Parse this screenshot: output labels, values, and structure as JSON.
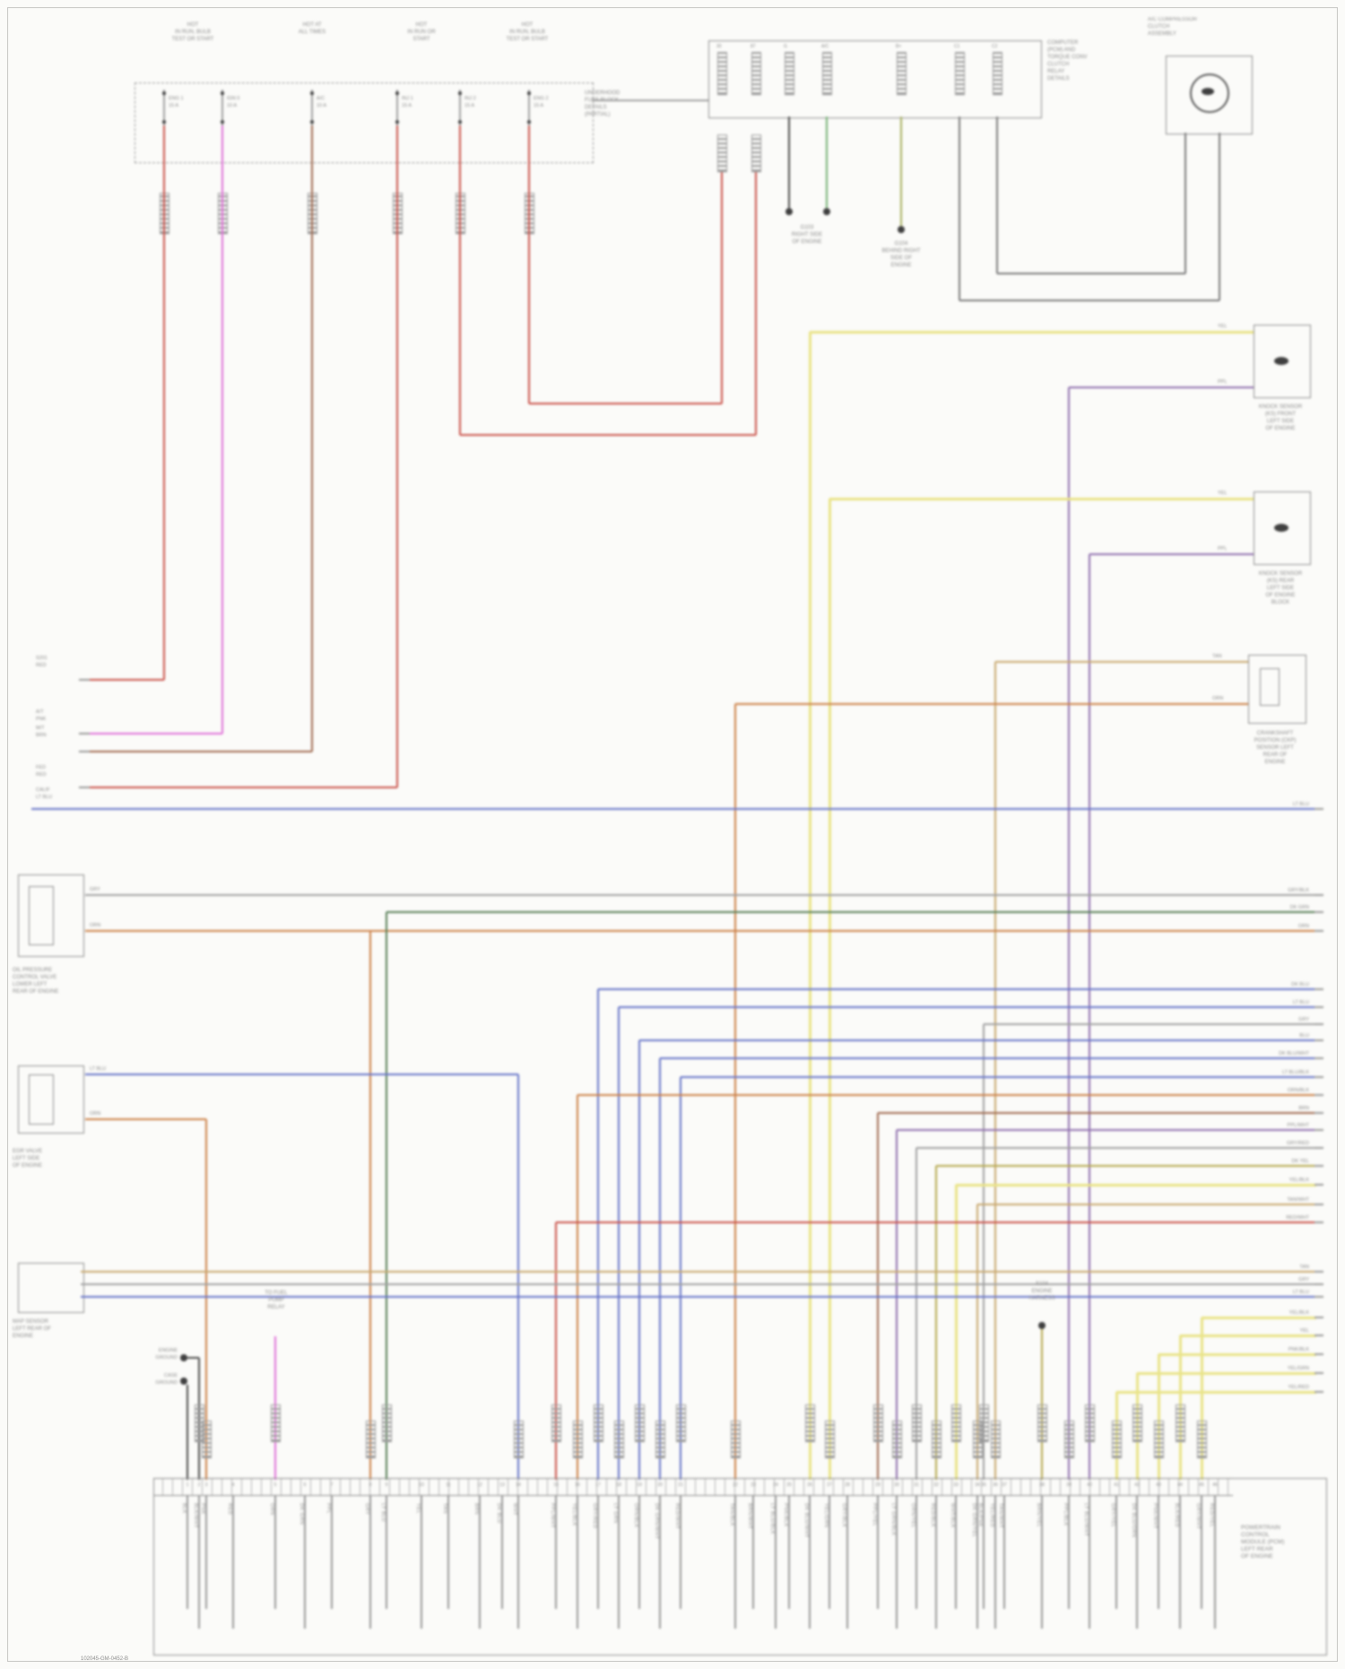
{
  "palette": {
    "red": "#c9524a",
    "pink": "#e070d8",
    "orange": "#cc8046",
    "brown": "#a06a50",
    "tan": "#c8a86e",
    "yellow": "#e9e387",
    "dkyellow": "#b5a84e",
    "green": "#74b274",
    "olive": "#a8b060",
    "dkgreen": "#557d55",
    "blue": "#6674c8",
    "purple": "#8f6fae",
    "gray": "#a0a0a0",
    "dkgray": "#7a7a7a",
    "black": "#4a4a4a"
  },
  "fuse_panel": {
    "headers": [
      [
        "HOT",
        "IN RUN, BULB",
        "TEST OR START"
      ],
      [
        "HOT AT",
        "ALL TIMES"
      ],
      [
        "HOT",
        "IN RUN OR",
        "START"
      ],
      [
        "HOT",
        "IN RUN, BULB",
        "TEST OR START"
      ]
    ],
    "detail_label": [
      "UNDERHOOD",
      "FUSE BLOCK",
      "DETAILS",
      "(PARTIAL)"
    ],
    "fuses": [
      [
        "ENG 1",
        "15 A"
      ],
      [
        "IGN 0",
        "10 A"
      ],
      [
        "A/C",
        "10 A"
      ],
      [
        "INJ 1",
        "15 A"
      ],
      [
        "INJ 2",
        "15 A"
      ],
      [
        "ENG 2",
        "15 A"
      ]
    ]
  },
  "junction": {
    "label": [
      "COMPUTER",
      "(PCM) AND",
      "TORQUE CONV",
      "CLUTCH",
      "RELAY",
      "DETAILS"
    ],
    "pins": [
      "30",
      "87",
      "G",
      "A/C",
      "B+",
      "C1",
      "C2"
    ],
    "component_label": [
      "A/C COMPRESSOR",
      "CLUTCH",
      "ASSEMBLY"
    ]
  },
  "grounds": {
    "g1": [
      "G103",
      "RIGHT SIDE",
      "OF ENGINE"
    ],
    "g2": [
      "G104",
      "BEHIND RIGHT",
      "SIDE OF",
      "ENGINE"
    ],
    "d1": [
      "ENGINE",
      "GROUND"
    ],
    "d2": [
      "CASE",
      "GROUND"
    ]
  },
  "right_components": [
    {
      "label": [
        "KNOCK SENSOR",
        "(KS) FRONT",
        "LEFT SIDE",
        "OF ENGINE"
      ]
    },
    {
      "label": [
        "KNOCK SENSOR",
        "(KS) REAR",
        "LEFT SIDE",
        "OF ENGINE",
        "BLOCK"
      ]
    },
    {
      "label": [
        "CRANKSHAFT",
        "POSITION (CKP)",
        "SENSOR LEFT",
        "REAR OF",
        "ENGINE"
      ]
    }
  ],
  "left_components": [
    {
      "label": [
        "OIL PRESSURE",
        "CONTROL VALVE",
        "LOWER LEFT",
        "REAR OF ENGINE"
      ]
    },
    {
      "label": [
        "EGR VALVE",
        "LEFT SIDE",
        "OF ENGINE"
      ]
    },
    {
      "label": [
        "MAP SENSOR",
        "LEFT REAR OF",
        "ENGINE"
      ]
    }
  ],
  "left_pins": [
    [
      "S201",
      "RED"
    ],
    [
      "A/T",
      "PNK"
    ],
    [
      "M/T",
      "BRN"
    ],
    [
      "FED",
      "RED"
    ],
    [
      "CALIF",
      "LT BLU"
    ]
  ],
  "right_pins_a": [
    "LT BLU",
    "GRY/BLK",
    "DK GRN",
    "ORN"
  ],
  "right_pins_b": [
    "DK BLU",
    "LT BLU",
    "GRY",
    "BLU",
    "DK BLU/WHT",
    "LT BLU/BLK",
    "ORN/BLK",
    "BRN",
    "PPL/WHT",
    "GRY/RED",
    "DK YEL",
    "YEL/BLK",
    "TAN/WHT",
    "RED/WHT"
  ],
  "right_pins_c": [
    "TAN",
    "GRY",
    "LT BLU",
    "YEL/BLK",
    "YEL",
    "PNK/BLK",
    "YEL/GRN",
    "YEL/RED"
  ],
  "wire_tags": {
    "ks1_a": "YEL",
    "ks1_b": "PPL",
    "ks2_a": "YEL",
    "ks2_b": "PPL",
    "ckp_a": "TAN",
    "ckp_b": "ORN",
    "oil_a": "GRY",
    "oil_b": "ORN",
    "egr_a": "LT BLU",
    "egr_b": "ORN"
  },
  "splice_label": [
    "S104",
    "ENGINE",
    "HARNESS"
  ],
  "pink_label": [
    "TO FUEL",
    "PUMP",
    "RELAY"
  ],
  "pcm_label": [
    "POWERTRAIN",
    "CONTROL",
    "MODULE (PCM)",
    "LEFT REAR",
    "OF ENGINE"
  ],
  "footer": {
    "id": "102045-GM-0452-B"
  },
  "bottom": {
    "wire_codes": [
      "BLK",
      "BLK/WHT",
      "PNK",
      "RED",
      "ORN",
      "DK GRN",
      "PPL",
      "GRY",
      "LT BLU",
      "YEL",
      "TAN",
      "BRN",
      "DK BLU",
      "WHT",
      "PPL/WHT",
      "YEL/BLK",
      "GRY/RED",
      "LT GRN",
      "ORN/BLK",
      "DK GRN/WHT",
      "RED/WHT",
      "TAN/BLK",
      "BRN/WHT",
      "LT BLU/BLK",
      "PNK/BLK",
      "DK BLU/WHT",
      "YEL/GRN",
      "GRY/BLK",
      "PPL/YEL",
      "LT GRN/BLK",
      "ORN/YEL",
      "RED/BLK",
      "WHT/BLK",
      "DK GRN/YEL",
      "BLK/PNK",
      "YEL/RED",
      "TAN/WHT",
      "BRN/YEL",
      "PPL/BLK",
      "LT BLU/WHT",
      "GRY/YEL",
      "DK BLU/ORN",
      "PNK/WHT",
      "BLK/RED",
      "GRY/WHT",
      "RED/YEL"
    ]
  }
}
